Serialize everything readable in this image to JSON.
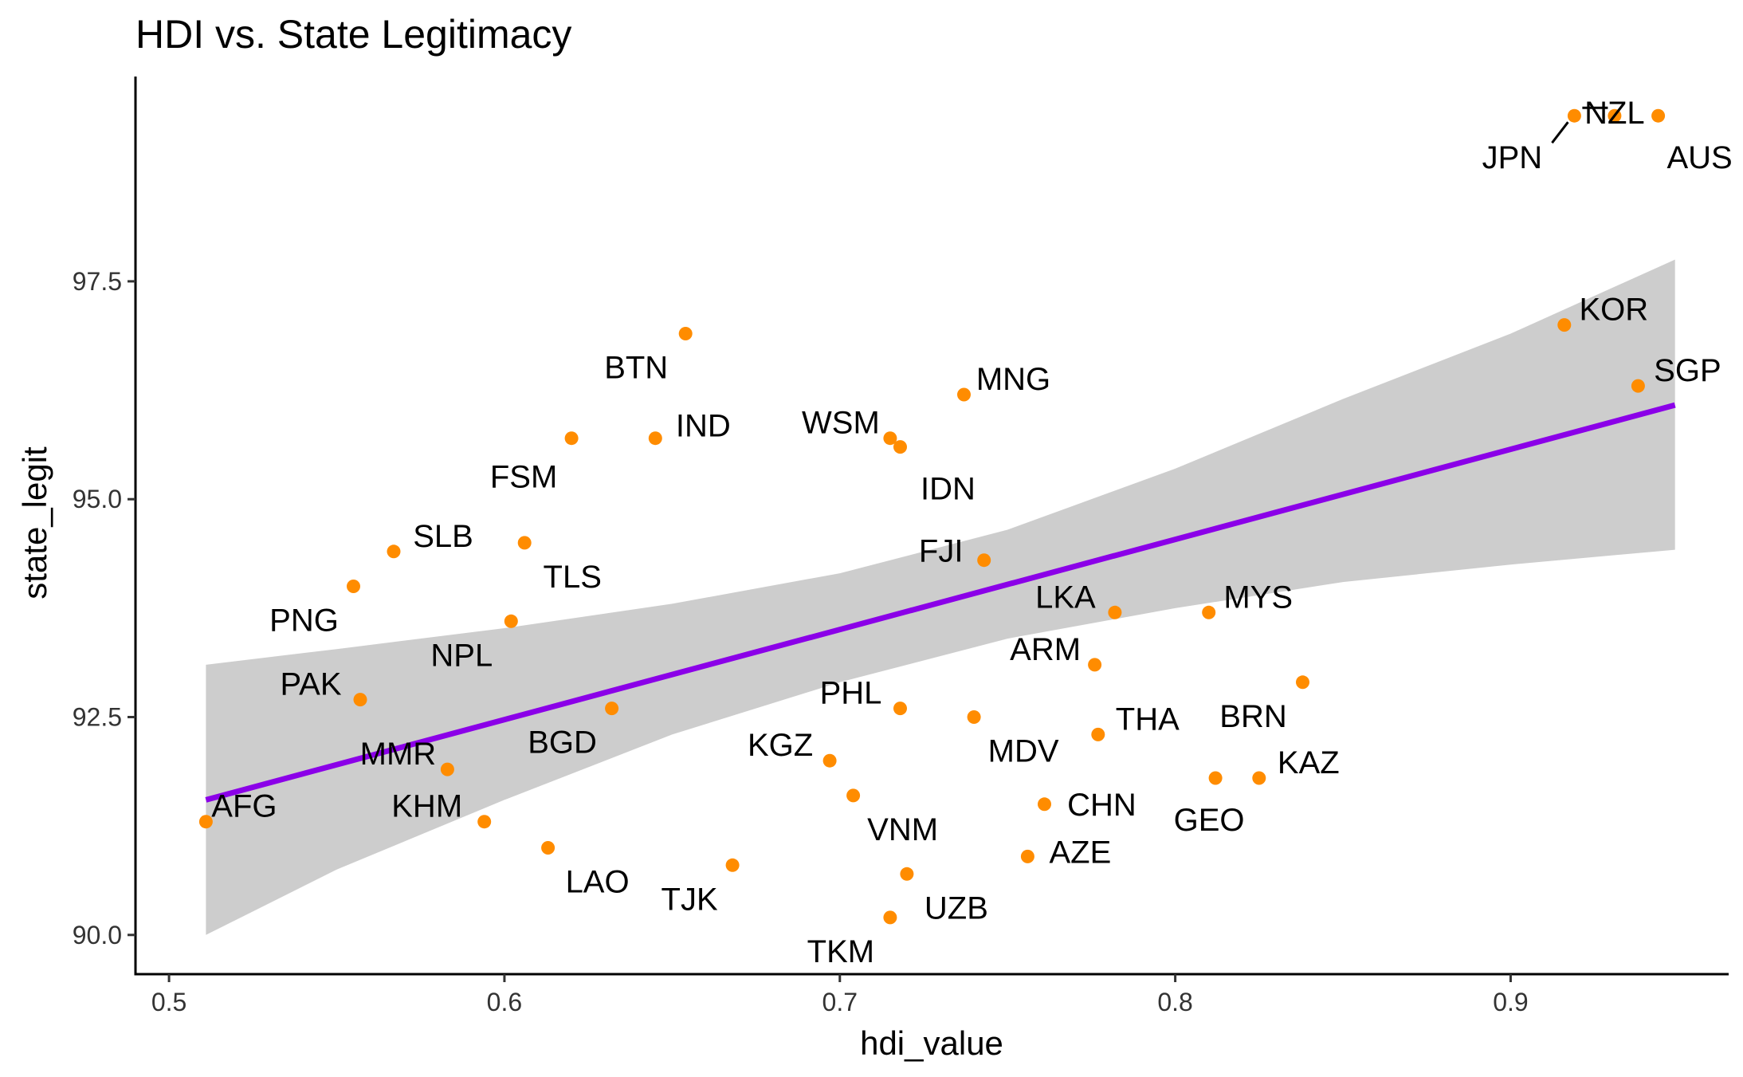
{
  "chart_data": {
    "type": "scatter",
    "title": "HDI vs. State Legitimacy",
    "xlabel": "hdi_value",
    "ylabel": "state_legit",
    "xlim": [
      0.49,
      0.965
    ],
    "ylim": [
      89.55,
      99.85
    ],
    "xticks": [
      0.5,
      0.6,
      0.7,
      0.8,
      0.9
    ],
    "xtick_labels": [
      "0.5",
      "0.6",
      "0.7",
      "0.8",
      "0.9"
    ],
    "yticks": [
      90.0,
      92.5,
      95.0,
      97.5
    ],
    "ytick_labels": [
      "90.0",
      "92.5",
      "95.0",
      "97.5"
    ],
    "grid": false,
    "point_color": "#FF8C00",
    "line_color": "#8B00E8",
    "band_color": "#C8C8C8",
    "trend": {
      "x": [
        0.511,
        0.949
      ],
      "y": [
        91.55,
        96.08
      ]
    },
    "confidence_band": {
      "x": [
        0.511,
        0.55,
        0.6,
        0.65,
        0.7,
        0.75,
        0.8,
        0.85,
        0.9,
        0.949
      ],
      "lower": [
        90.0,
        90.75,
        91.55,
        92.3,
        92.9,
        93.4,
        93.75,
        94.05,
        94.25,
        94.42
      ],
      "upper": [
        93.1,
        93.28,
        93.52,
        93.8,
        94.15,
        94.65,
        95.35,
        96.15,
        96.9,
        97.75
      ]
    },
    "points": [
      {
        "label": "AFG",
        "x": 0.511,
        "y": 91.3
      },
      {
        "label": "AUS",
        "x": 0.944,
        "y": 99.4
      },
      {
        "label": "NZL",
        "x": 0.931,
        "y": 99.4
      },
      {
        "label": "JPN",
        "x": 0.919,
        "y": 99.4
      },
      {
        "label": "KOR",
        "x": 0.916,
        "y": 97.0
      },
      {
        "label": "SGP",
        "x": 0.938,
        "y": 96.3
      },
      {
        "label": "BTN",
        "x": 0.654,
        "y": 96.9
      },
      {
        "label": "MNG",
        "x": 0.737,
        "y": 96.2
      },
      {
        "label": "IND",
        "x": 0.645,
        "y": 95.7
      },
      {
        "label": "FSM",
        "x": 0.62,
        "y": 95.7
      },
      {
        "label": "WSM",
        "x": 0.715,
        "y": 95.7
      },
      {
        "label": "IDN",
        "x": 0.718,
        "y": 95.6
      },
      {
        "label": "SLB",
        "x": 0.567,
        "y": 94.4
      },
      {
        "label": "TLS",
        "x": 0.606,
        "y": 94.5
      },
      {
        "label": "FJI",
        "x": 0.743,
        "y": 94.3
      },
      {
        "label": "PNG",
        "x": 0.555,
        "y": 94.0
      },
      {
        "label": "LKA",
        "x": 0.782,
        "y": 93.7
      },
      {
        "label": "MYS",
        "x": 0.81,
        "y": 93.7
      },
      {
        "label": "NPL",
        "x": 0.602,
        "y": 93.6
      },
      {
        "label": "ARM",
        "x": 0.776,
        "y": 93.1
      },
      {
        "label": "BRN",
        "x": 0.838,
        "y": 92.9
      },
      {
        "label": "PAK",
        "x": 0.557,
        "y": 92.7
      },
      {
        "label": "BGD",
        "x": 0.632,
        "y": 92.6
      },
      {
        "label": "PHL",
        "x": 0.718,
        "y": 92.6
      },
      {
        "label": "MDV",
        "x": 0.74,
        "y": 92.5
      },
      {
        "label": "THA",
        "x": 0.777,
        "y": 92.3
      },
      {
        "label": "KGZ",
        "x": 0.697,
        "y": 92.0
      },
      {
        "label": "MMR",
        "x": 0.583,
        "y": 91.9
      },
      {
        "label": "GEO",
        "x": 0.812,
        "y": 91.8
      },
      {
        "label": "KAZ",
        "x": 0.825,
        "y": 91.8
      },
      {
        "label": "VNM",
        "x": 0.704,
        "y": 91.6
      },
      {
        "label": "CHN",
        "x": 0.761,
        "y": 91.5
      },
      {
        "label": "KHM",
        "x": 0.594,
        "y": 91.3
      },
      {
        "label": "LAO",
        "x": 0.613,
        "y": 91.0
      },
      {
        "label": "AZE",
        "x": 0.756,
        "y": 90.9
      },
      {
        "label": "TJK",
        "x": 0.668,
        "y": 90.8
      },
      {
        "label": "UZB",
        "x": 0.72,
        "y": 90.7
      },
      {
        "label": "TKM",
        "x": 0.715,
        "y": 90.2
      }
    ]
  }
}
